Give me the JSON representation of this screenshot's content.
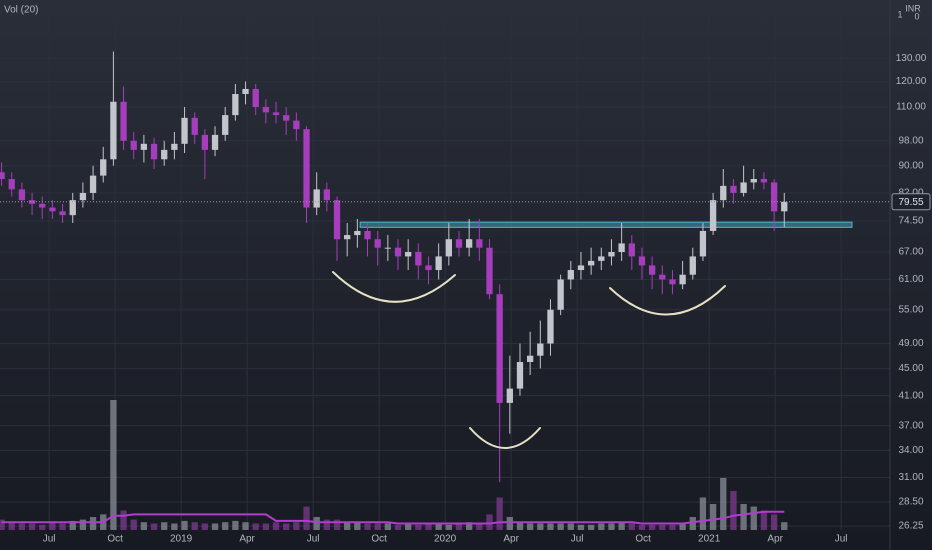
{
  "chart_data": {
    "type": "candlestick",
    "indicator_label": "Vol (20)",
    "currency": "INR",
    "corner_labels": [
      "1",
      "0"
    ],
    "x": [
      2018.32,
      2018.3585,
      2018.397,
      2018.4355,
      2018.474,
      2018.5125,
      2018.551,
      2018.5895,
      2018.628,
      2018.6665,
      2018.705,
      2018.7435,
      2018.782,
      2018.8205,
      2018.859,
      2018.8975,
      2018.936,
      2018.9745,
      2019.013,
      2019.0515,
      2019.09,
      2019.1285,
      2019.167,
      2019.2055,
      2019.244,
      2019.2825,
      2019.321,
      2019.3595,
      2019.398,
      2019.4365,
      2019.475,
      2019.5135,
      2019.552,
      2019.5905,
      2019.629,
      2019.6675,
      2019.706,
      2019.7445,
      2019.783,
      2019.8215,
      2019.86,
      2019.8985,
      2019.937,
      2019.9755,
      2020.014,
      2020.0525,
      2020.091,
      2020.1295,
      2020.168,
      2020.2065,
      2020.245,
      2020.2835,
      2020.322,
      2020.3605,
      2020.399,
      2020.4375,
      2020.476,
      2020.5145,
      2020.553,
      2020.5915,
      2020.63,
      2020.6685,
      2020.707,
      2020.7455,
      2020.784,
      2020.8225,
      2020.861,
      2020.8995,
      2020.938,
      2020.9765,
      2021.015,
      2021.0535,
      2021.092,
      2021.1305,
      2021.169,
      2021.2075,
      2021.246,
      2021.2845
    ],
    "open": [
      88,
      86,
      83,
      80,
      79,
      78,
      77,
      76,
      80,
      82,
      87,
      92,
      112,
      98,
      95,
      97,
      92,
      95,
      97,
      106,
      100,
      95,
      100,
      107,
      115,
      117,
      110,
      108,
      107,
      105,
      102,
      78,
      83,
      80,
      70,
      71,
      72,
      70,
      68,
      68,
      66,
      67,
      64,
      63,
      66,
      70,
      68,
      70,
      68,
      58,
      40,
      42,
      46,
      47,
      49,
      55,
      61,
      63,
      64,
      65,
      66,
      67,
      69,
      66,
      64,
      62,
      61,
      60,
      62,
      66,
      72,
      80,
      84,
      82,
      85,
      86,
      85,
      77
    ],
    "high": [
      91,
      88,
      85,
      82,
      81,
      80,
      79,
      82,
      85,
      90,
      96,
      133,
      118,
      101,
      100,
      99,
      98,
      101,
      110,
      108,
      102,
      103,
      110,
      119,
      120,
      119,
      113,
      112,
      110,
      108,
      103,
      88,
      85,
      81,
      74,
      75,
      74,
      72,
      71,
      70,
      70,
      69,
      66,
      69,
      74,
      72,
      75,
      75,
      70,
      60,
      47,
      49,
      51,
      53,
      57,
      62,
      65,
      67,
      68,
      68,
      70,
      74,
      71,
      68,
      66,
      64,
      63,
      65,
      68,
      74,
      82,
      89,
      86,
      90,
      89,
      88,
      86,
      82
    ],
    "low": [
      84,
      81,
      78,
      76,
      75,
      75,
      74,
      74,
      78,
      80,
      85,
      90,
      95,
      92,
      91,
      89,
      90,
      92,
      94,
      97,
      86,
      93,
      98,
      105,
      111,
      107,
      104,
      104,
      100,
      98,
      74,
      76,
      77,
      65,
      66,
      68,
      66,
      64,
      65,
      63,
      63,
      61,
      60,
      61,
      64,
      66,
      66,
      65,
      57,
      30.5,
      36,
      41,
      44,
      45,
      47,
      54,
      59,
      61,
      62,
      63,
      64,
      65,
      63,
      61,
      59,
      58,
      58,
      59,
      61,
      65,
      71,
      78,
      79,
      81,
      83,
      83,
      72,
      73
    ],
    "close": [
      86,
      83,
      80,
      79,
      78,
      77,
      76,
      80,
      82,
      87,
      92,
      112,
      98,
      95,
      97,
      92,
      95,
      97,
      106,
      100,
      95,
      100,
      107,
      115,
      117,
      110,
      108,
      107,
      105,
      102,
      78,
      83,
      80,
      70,
      71,
      72,
      70,
      68,
      68,
      66,
      67,
      64,
      63,
      66,
      70,
      68,
      70,
      68,
      58,
      40,
      42,
      46,
      47,
      49,
      55,
      61,
      63,
      64,
      65,
      66,
      67,
      69,
      66,
      64,
      62,
      61,
      60,
      62,
      66,
      72,
      80,
      84,
      82,
      85,
      86,
      85,
      77,
      79.55
    ],
    "volume": [
      8,
      6,
      5,
      5,
      4,
      6,
      5,
      7,
      8,
      10,
      12,
      100,
      15,
      8,
      6,
      5,
      6,
      5,
      7,
      6,
      5,
      5,
      6,
      7,
      6,
      5,
      5,
      6,
      5,
      6,
      18,
      10,
      8,
      8,
      6,
      6,
      5,
      5,
      5,
      4,
      5,
      4,
      5,
      5,
      4,
      5,
      6,
      5,
      12,
      25,
      10,
      6,
      5,
      5,
      5,
      5,
      5,
      4,
      4,
      5,
      5,
      6,
      5,
      4,
      4,
      4,
      4,
      5,
      10,
      25,
      20,
      40,
      30,
      20,
      18,
      15,
      12,
      6
    ],
    "volume_ma": [
      6,
      6,
      6,
      6,
      6,
      6,
      6,
      6,
      6,
      6,
      6,
      11,
      11,
      12,
      12,
      12,
      12,
      12,
      12,
      12,
      12,
      12,
      12,
      12,
      12,
      12,
      12,
      7,
      7,
      7,
      7,
      6,
      6,
      6,
      6,
      6,
      6,
      6,
      6,
      5,
      5,
      5,
      5,
      5,
      5,
      5,
      5,
      5,
      5,
      6,
      6,
      6,
      6,
      6,
      6,
      6,
      6,
      6,
      6,
      6,
      6,
      6,
      6,
      5,
      5,
      5,
      5,
      5,
      6,
      7,
      8,
      9,
      11,
      12,
      13,
      14,
      14,
      14
    ],
    "up_color": "#c3c5cd",
    "down_color": "#a53dbd",
    "ma_color": "#b23ccf",
    "zone": {
      "x": [
        2019.678,
        2021.541
      ],
      "y": [
        72.9,
        74.2
      ],
      "color": "#4fb7d0"
    },
    "xlim": [
      2018.314,
      2021.685
    ],
    "xticks": [
      {
        "value": 2018.5,
        "label": "Jul"
      },
      {
        "value": 2018.75,
        "label": "Oct"
      },
      2019,
      {
        "value": 2019.25,
        "label": "Apr"
      },
      {
        "value": 2019.5,
        "label": "Jul"
      },
      {
        "value": 2019.75,
        "label": "Oct"
      },
      2020,
      {
        "value": 2020.25,
        "label": "Apr"
      },
      {
        "value": 2020.5,
        "label": "Jul"
      },
      {
        "value": 2020.75,
        "label": "Oct"
      },
      2021,
      {
        "value": 2021.25,
        "label": "Apr"
      },
      {
        "value": 2021.5,
        "label": "Jul"
      }
    ],
    "ylim": [
      25.9,
      158.6
    ],
    "yticks": [
      {
        "value": 26.25,
        "label": "26.25"
      },
      {
        "value": 28.5,
        "label": "28.50"
      },
      {
        "value": 31,
        "label": "31.00"
      },
      {
        "value": 34,
        "label": "34.00"
      },
      {
        "value": 37,
        "label": "37.00"
      },
      {
        "value": 41,
        "label": "41.00"
      },
      {
        "value": 45,
        "label": "45.00"
      },
      {
        "value": 49,
        "label": "49.00"
      },
      {
        "value": 55,
        "label": "55.00"
      },
      {
        "value": 61,
        "label": "61.00"
      },
      {
        "value": 67,
        "label": "67.00"
      },
      {
        "value": 74.5,
        "label": "74.50"
      },
      {
        "value": 82,
        "label": "82.00"
      },
      {
        "value": 90,
        "label": "90.00"
      },
      {
        "value": 98,
        "label": "98.00"
      },
      {
        "value": 110,
        "label": "110.00"
      },
      {
        "value": 120,
        "label": "120.00"
      },
      {
        "value": 130,
        "label": "130.00"
      }
    ],
    "log_scale": true,
    "grid": true
  }
}
